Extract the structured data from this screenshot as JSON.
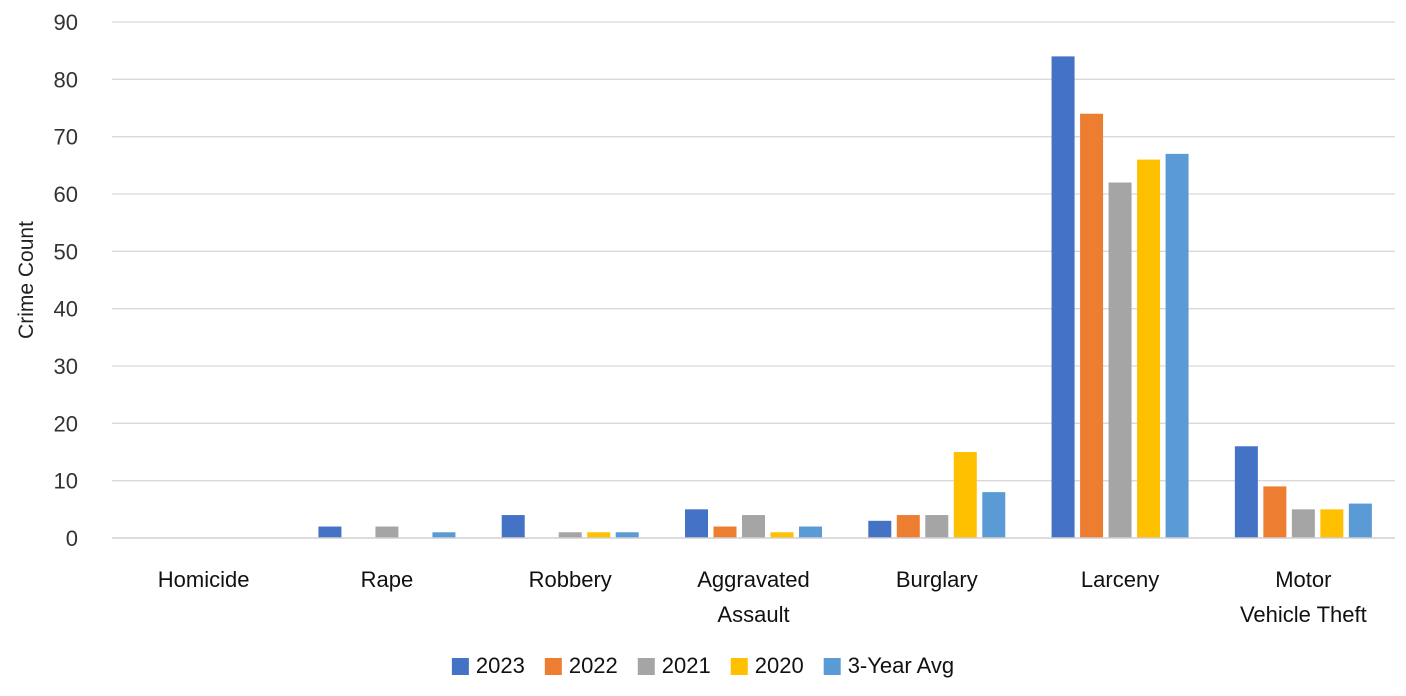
{
  "chart_data": {
    "type": "bar",
    "title": "",
    "xlabel": "",
    "ylabel": "Crime Count",
    "ylim": [
      0,
      90
    ],
    "yticks": [
      0,
      10,
      20,
      30,
      40,
      50,
      60,
      70,
      80,
      90
    ],
    "grid": true,
    "legend_position": "bottom",
    "categories": [
      [
        "Homicide"
      ],
      [
        "Rape"
      ],
      [
        "Robbery"
      ],
      [
        "Aggravated",
        "Assault"
      ],
      [
        "Burglary"
      ],
      [
        "Larceny"
      ],
      [
        "Motor",
        "Vehicle Theft"
      ]
    ],
    "series": [
      {
        "name": "2023",
        "color": "#4472C4",
        "values": [
          0,
          2,
          4,
          5,
          3,
          84,
          16
        ]
      },
      {
        "name": "2022",
        "color": "#ED7D31",
        "values": [
          0,
          0,
          0,
          2,
          4,
          74,
          9
        ]
      },
      {
        "name": "2021",
        "color": "#A5A5A5",
        "values": [
          0,
          2,
          1,
          4,
          4,
          62,
          5
        ]
      },
      {
        "name": "2020",
        "color": "#FFC000",
        "values": [
          0,
          0,
          1,
          1,
          15,
          66,
          5
        ]
      },
      {
        "name": "3-Year Avg",
        "color": "#5B9BD5",
        "values": [
          0,
          1,
          1,
          2,
          8,
          67,
          6
        ]
      }
    ]
  }
}
